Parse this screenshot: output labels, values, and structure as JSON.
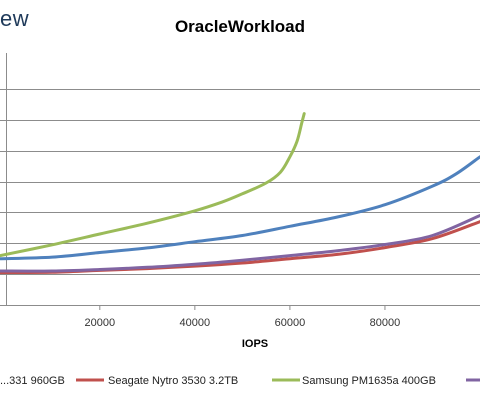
{
  "logo_text": "ew",
  "chart_data": {
    "type": "line",
    "title": "OracleWorkload",
    "xlabel": "IOPS",
    "ylabel": "",
    "xlim": [
      -1000,
      100000
    ],
    "ylim": [
      0,
      8
    ],
    "x_ticks": [
      20000,
      40000,
      60000,
      80000
    ],
    "x_tick_labels": [
      "20000",
      "40000",
      "60000",
      "80000"
    ],
    "y_gridlines": [
      1,
      2,
      3,
      4,
      5,
      6,
      7
    ],
    "grid": "horizontal",
    "legend_position": "bottom",
    "series": [
      {
        "name": "...331 960GB",
        "color": "#4f81bd",
        "points": [
          [
            -1000,
            1.5
          ],
          [
            10000,
            1.55
          ],
          [
            20000,
            1.7
          ],
          [
            30000,
            1.85
          ],
          [
            40000,
            2.05
          ],
          [
            50000,
            2.25
          ],
          [
            60000,
            2.55
          ],
          [
            70000,
            2.85
          ],
          [
            80000,
            3.25
          ],
          [
            90000,
            3.85
          ],
          [
            95000,
            4.25
          ],
          [
            100000,
            4.8
          ]
        ]
      },
      {
        "name": "Seagate Nytro 3530 3.2TB",
        "color": "#c0504d",
        "points": [
          [
            -1000,
            1.05
          ],
          [
            10000,
            1.06
          ],
          [
            20000,
            1.12
          ],
          [
            30000,
            1.18
          ],
          [
            40000,
            1.26
          ],
          [
            50000,
            1.36
          ],
          [
            60000,
            1.5
          ],
          [
            70000,
            1.64
          ],
          [
            80000,
            1.86
          ],
          [
            90000,
            2.15
          ],
          [
            100000,
            2.7
          ]
        ]
      },
      {
        "name": "Samsung PM1635a 400GB",
        "color": "#9bbb59",
        "points": [
          [
            -1000,
            1.6
          ],
          [
            10000,
            1.95
          ],
          [
            20000,
            2.3
          ],
          [
            30000,
            2.65
          ],
          [
            40000,
            3.05
          ],
          [
            46000,
            3.35
          ],
          [
            50000,
            3.6
          ],
          [
            55000,
            3.95
          ],
          [
            58000,
            4.3
          ],
          [
            60000,
            4.8
          ],
          [
            61500,
            5.3
          ],
          [
            62500,
            5.9
          ],
          [
            63000,
            6.2
          ]
        ]
      },
      {
        "name": "",
        "color": "#8064a2",
        "points": [
          [
            -1000,
            1.1
          ],
          [
            10000,
            1.1
          ],
          [
            20000,
            1.15
          ],
          [
            30000,
            1.22
          ],
          [
            40000,
            1.32
          ],
          [
            50000,
            1.45
          ],
          [
            60000,
            1.6
          ],
          [
            70000,
            1.76
          ],
          [
            80000,
            1.96
          ],
          [
            90000,
            2.25
          ],
          [
            100000,
            2.9
          ]
        ]
      }
    ]
  }
}
